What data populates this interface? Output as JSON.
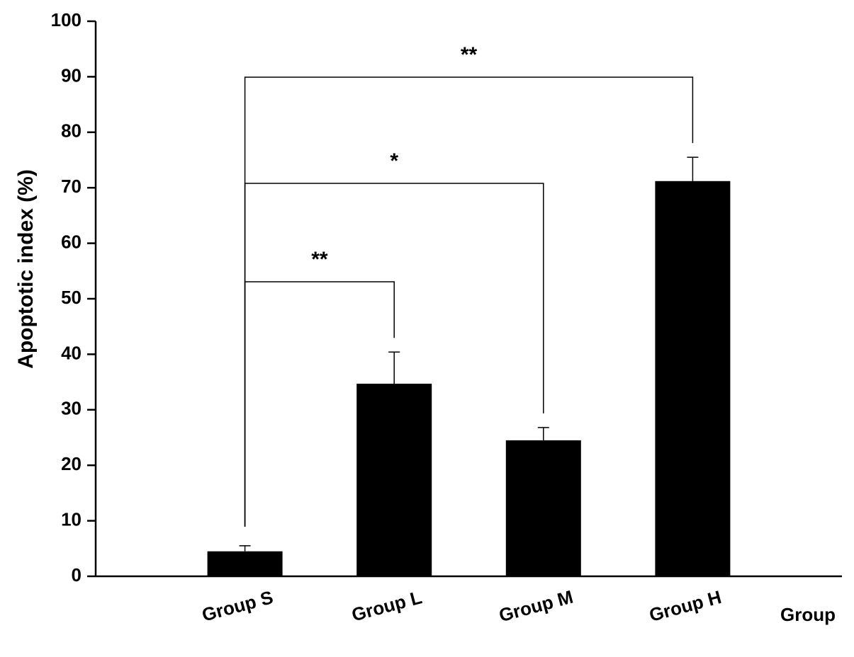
{
  "chart_data": {
    "type": "bar",
    "categories": [
      "Group S",
      "Group L",
      "Group M",
      "Group H"
    ],
    "values": [
      4.5,
      34.7,
      24.5,
      71.2
    ],
    "errors": [
      1.0,
      5.7,
      2.3,
      4.3
    ],
    "color": "#000000",
    "y_label": "Apoptotic index (%)",
    "x_label": "Group",
    "ylim": [
      0,
      100
    ],
    "yticks": [
      0,
      10,
      20,
      30,
      40,
      50,
      60,
      70,
      80,
      90,
      100
    ],
    "annotations": [
      "**",
      "*",
      "**"
    ]
  }
}
